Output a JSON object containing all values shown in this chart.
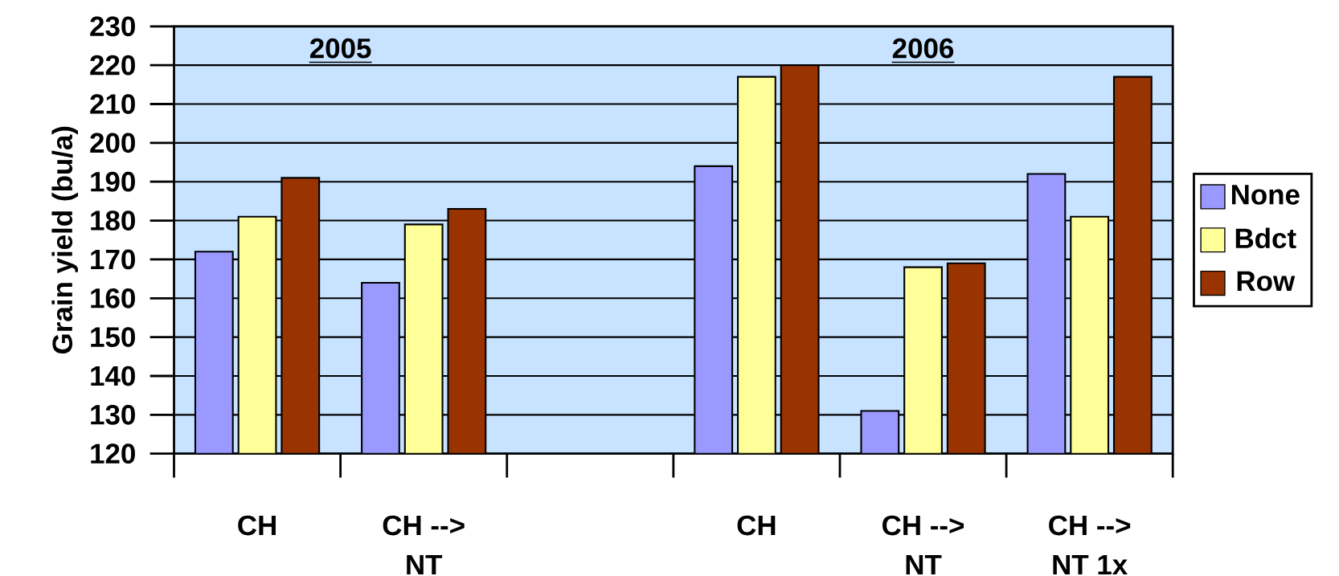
{
  "chart_data": {
    "type": "bar",
    "ylabel": "Grain yield (bu/a)",
    "categories": [
      "CH",
      "CH --> NT",
      null,
      "CH",
      "CH --> NT",
      "CH --> NT 1x"
    ],
    "series": [
      {
        "name": "None",
        "color": "#9999ff",
        "values": [
          172,
          164,
          null,
          194,
          131,
          192
        ]
      },
      {
        "name": "Bdct",
        "color": "#ffff99",
        "values": [
          181,
          179,
          null,
          217,
          168,
          181
        ]
      },
      {
        "name": "Row",
        "color": "#993300",
        "values": [
          191,
          183,
          null,
          220,
          169,
          217
        ]
      }
    ],
    "ylim": [
      120,
      230
    ],
    "yticks": [
      120,
      130,
      140,
      150,
      160,
      170,
      180,
      190,
      200,
      210,
      220,
      230
    ],
    "grid": "y",
    "legend": "right",
    "annotations": [
      "2005",
      "2006"
    ]
  }
}
